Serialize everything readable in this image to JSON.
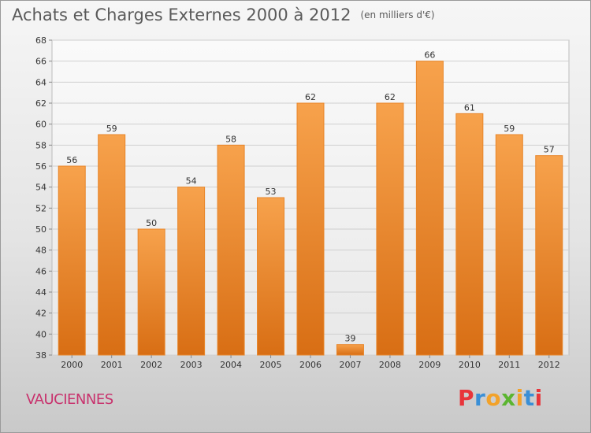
{
  "title": "Achats et Charges Externes 2000 à 2012",
  "unit": "(en milliers d'€)",
  "town": "VAUCIENNES",
  "logo": {
    "letters": [
      "P",
      "r",
      "o",
      "x",
      "i",
      "t",
      "i"
    ],
    "colors": [
      "#e8353b",
      "#3a8fd6",
      "#f2a22a",
      "#5bb530",
      "#f2a22a",
      "#3a8fd6",
      "#e8353b"
    ]
  },
  "chart_data": {
    "type": "bar",
    "categories": [
      "2000",
      "2001",
      "2002",
      "2003",
      "2004",
      "2005",
      "2006",
      "2007",
      "2008",
      "2009",
      "2010",
      "2011",
      "2012"
    ],
    "values": [
      56,
      59,
      50,
      54,
      58,
      53,
      62,
      39,
      62,
      66,
      61,
      59,
      57
    ],
    "ylim": [
      38,
      68
    ],
    "yticks": [
      38,
      40,
      42,
      44,
      46,
      48,
      50,
      52,
      54,
      56,
      58,
      60,
      62,
      64,
      66,
      68
    ],
    "grid": true,
    "bar_color": "#f0922d"
  }
}
